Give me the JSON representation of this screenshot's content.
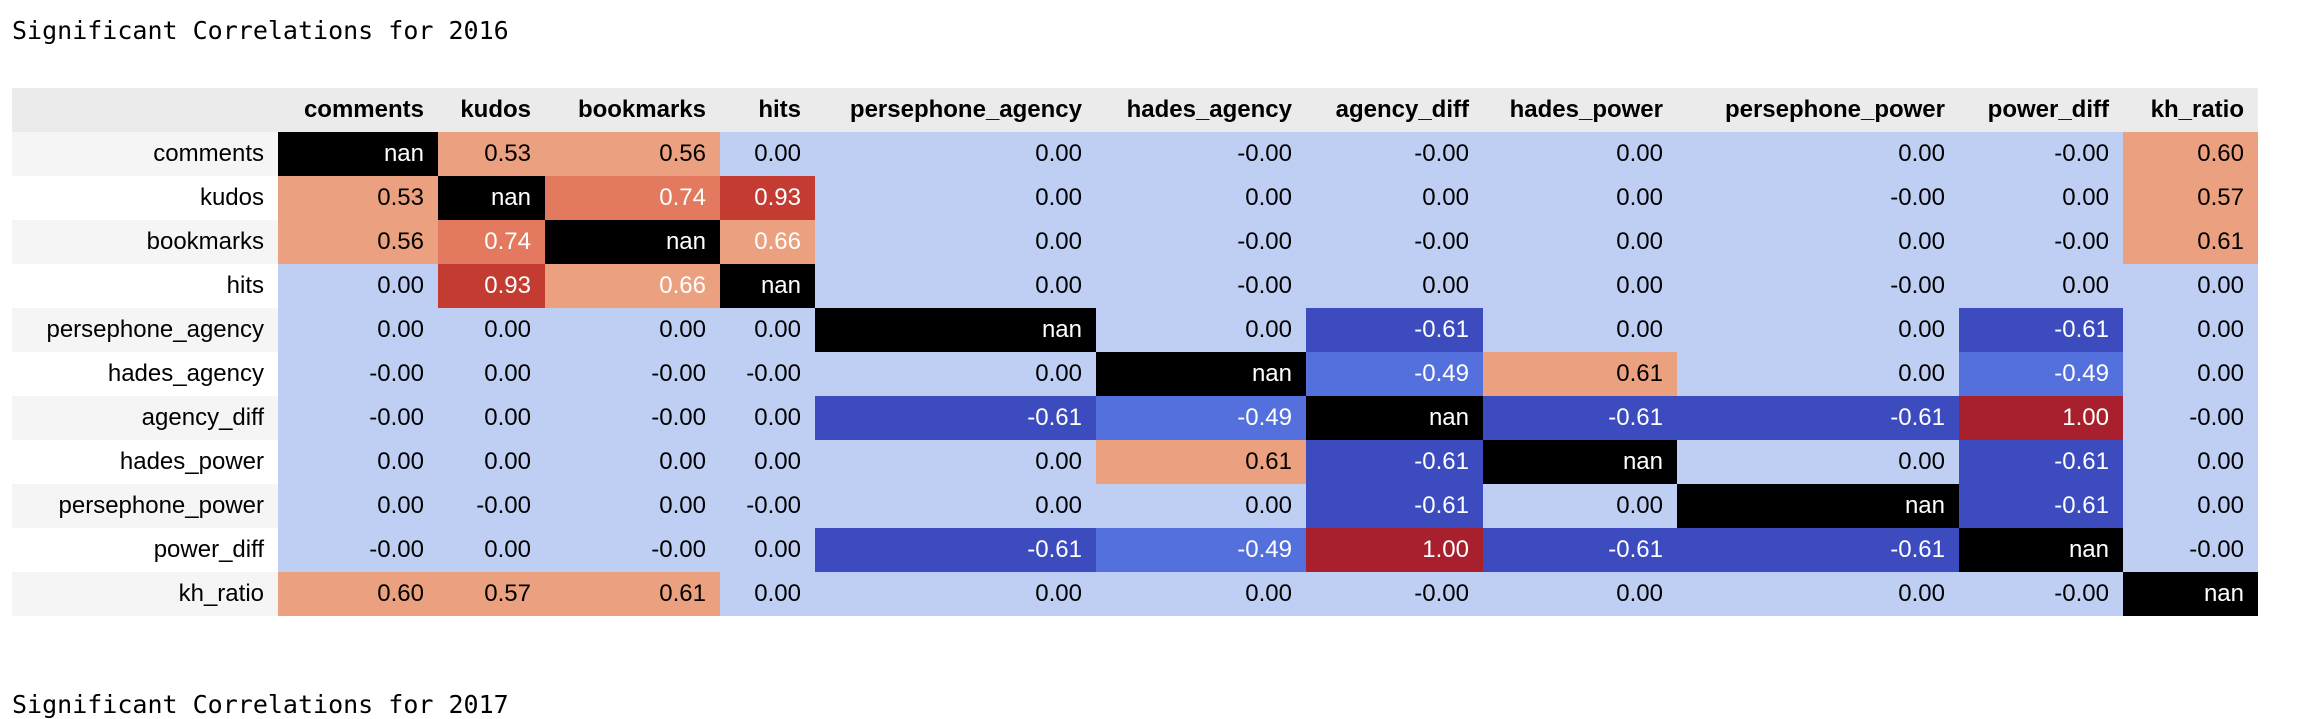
{
  "titles": {
    "first": "Significant Correlations for 2016",
    "second": "Significant Correlations for 2017"
  },
  "colors": {
    "diagonal": "#000000",
    "near_zero": "#bfcff4",
    "scale_negative_strong": "#3c4cbf",
    "scale_negative_medium": "#5470dd",
    "scale_positive_low": "#eba17f",
    "scale_positive_mid": "#e37a5f",
    "scale_positive_high": "#c33b31",
    "scale_positive_max": "#a8202d"
  },
  "chart_data": {
    "type": "heatmap",
    "title": "Significant Correlations for 2016",
    "variables": [
      "comments",
      "kudos",
      "bookmarks",
      "hits",
      "persephone_agency",
      "hades_agency",
      "agency_diff",
      "hades_power",
      "persephone_power",
      "power_diff",
      "kh_ratio"
    ],
    "cells": [
      [
        "nan",
        "0.53",
        "0.56",
        "0.00",
        "0.00",
        "-0.00",
        "-0.00",
        "0.00",
        "0.00",
        "-0.00",
        "0.60"
      ],
      [
        "0.53",
        "nan",
        "0.74",
        "0.93",
        "0.00",
        "0.00",
        "0.00",
        "0.00",
        "-0.00",
        "0.00",
        "0.57"
      ],
      [
        "0.56",
        "0.74",
        "nan",
        "0.66",
        "0.00",
        "-0.00",
        "-0.00",
        "0.00",
        "0.00",
        "-0.00",
        "0.61"
      ],
      [
        "0.00",
        "0.93",
        "0.66",
        "nan",
        "0.00",
        "-0.00",
        "0.00",
        "0.00",
        "-0.00",
        "0.00",
        "0.00"
      ],
      [
        "0.00",
        "0.00",
        "0.00",
        "0.00",
        "nan",
        "0.00",
        "-0.61",
        "0.00",
        "0.00",
        "-0.61",
        "0.00"
      ],
      [
        "-0.00",
        "0.00",
        "-0.00",
        "-0.00",
        "0.00",
        "nan",
        "-0.49",
        "0.61",
        "0.00",
        "-0.49",
        "0.00"
      ],
      [
        "-0.00",
        "0.00",
        "-0.00",
        "0.00",
        "-0.61",
        "-0.49",
        "nan",
        "-0.61",
        "-0.61",
        "1.00",
        "-0.00"
      ],
      [
        "0.00",
        "0.00",
        "0.00",
        "0.00",
        "0.00",
        "0.61",
        "-0.61",
        "nan",
        "0.00",
        "-0.61",
        "0.00"
      ],
      [
        "0.00",
        "-0.00",
        "0.00",
        "-0.00",
        "0.00",
        "0.00",
        "-0.61",
        "0.00",
        "nan",
        "-0.61",
        "0.00"
      ],
      [
        "-0.00",
        "0.00",
        "-0.00",
        "0.00",
        "-0.61",
        "-0.49",
        "1.00",
        "-0.61",
        "-0.61",
        "nan",
        "-0.00"
      ],
      [
        "0.60",
        "0.57",
        "0.61",
        "0.00",
        "0.00",
        "0.00",
        "-0.00",
        "0.00",
        "0.00",
        "-0.00",
        "nan"
      ]
    ]
  }
}
